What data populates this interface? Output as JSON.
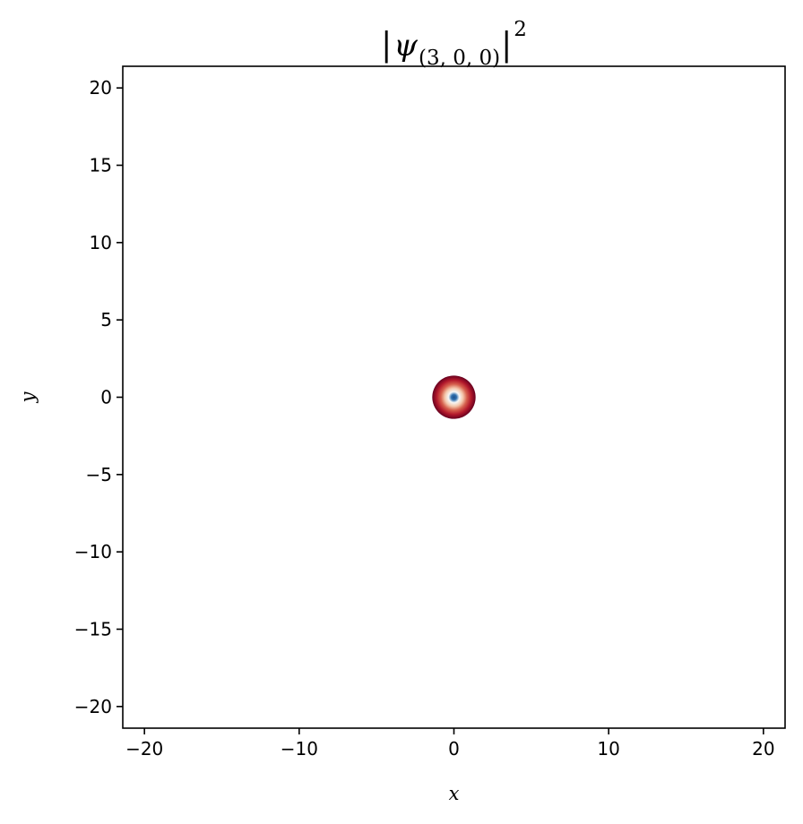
{
  "chart_data": {
    "type": "heatmap",
    "title": {
      "base": "ψ",
      "subscript": "(3, 0, 0)",
      "exponent": "2"
    },
    "xlabel": "x",
    "ylabel": "y",
    "xlim": [
      -21.4,
      21.4
    ],
    "ylim": [
      -21.4,
      21.4
    ],
    "x_ticks": [
      {
        "value": -20,
        "label": "−20"
      },
      {
        "value": -10,
        "label": "−10"
      },
      {
        "value": 0,
        "label": "0"
      },
      {
        "value": 10,
        "label": "10"
      },
      {
        "value": 20,
        "label": "20"
      }
    ],
    "y_ticks": [
      {
        "value": 20,
        "label": "20"
      },
      {
        "value": 15,
        "label": "15"
      },
      {
        "value": 10,
        "label": "10"
      },
      {
        "value": 5,
        "label": "5"
      },
      {
        "value": 0,
        "label": "0"
      },
      {
        "value": -5,
        "label": "−5"
      },
      {
        "value": -10,
        "label": "−10"
      },
      {
        "value": -15,
        "label": "−15"
      },
      {
        "value": -20,
        "label": "−20"
      }
    ],
    "density_blob": {
      "center": [
        0,
        0
      ],
      "radius": 1.4,
      "colormap": "RdBu_r",
      "color_stops": [
        {
          "r": 0.0,
          "color": "#1d4f8a"
        },
        {
          "r": 0.12,
          "color": "#2f6fae"
        },
        {
          "r": 0.25,
          "color": "#f7f7f7"
        },
        {
          "r": 0.42,
          "color": "#f4c7ab"
        },
        {
          "r": 0.6,
          "color": "#d6604d"
        },
        {
          "r": 0.8,
          "color": "#b2182b"
        },
        {
          "r": 1.0,
          "color": "#67001f"
        }
      ]
    },
    "grid": false
  }
}
